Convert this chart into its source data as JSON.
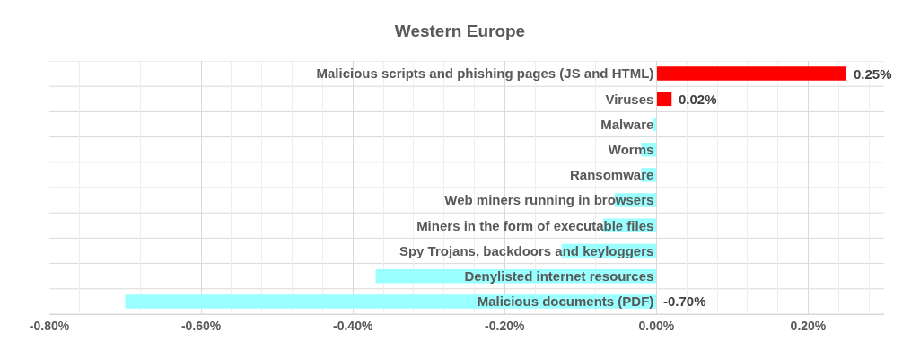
{
  "chart_data": {
    "type": "bar",
    "orientation": "horizontal",
    "title": "Western Europe",
    "categories": [
      "Malicious scripts and phishing pages (JS and HTML)",
      "Viruses",
      "Malware",
      "Worms",
      "Ransomware",
      "Web miners running in browsers",
      "Miners in the form of executable files",
      "Spy Trojans, backdoors and keyloggers",
      "Denylisted internet resources",
      "Malicious documents (PDF)"
    ],
    "values": [
      0.25,
      0.02,
      -0.004,
      -0.02,
      -0.02,
      -0.055,
      -0.07,
      -0.125,
      -0.37,
      -0.7
    ],
    "colors": [
      "#ff0000",
      "#ff0000",
      "#99ffff",
      "#99ffff",
      "#99ffff",
      "#99ffff",
      "#99ffff",
      "#99ffff",
      "#99ffff",
      "#99ffff"
    ],
    "value_labels": [
      "0.25%",
      "0.02%",
      null,
      null,
      null,
      null,
      null,
      null,
      null,
      "-0.70%"
    ],
    "xlim": [
      -0.8,
      0.3
    ],
    "xticks": [
      {
        "value": -0.8,
        "label": "-0.80%"
      },
      {
        "value": -0.6,
        "label": "-0.60%"
      },
      {
        "value": -0.4,
        "label": "-0.40%"
      },
      {
        "value": -0.2,
        "label": "-0.20%"
      },
      {
        "value": 0,
        "label": "0.00%"
      },
      {
        "value": 0.2,
        "label": "0.20%"
      }
    ],
    "grid": true
  }
}
